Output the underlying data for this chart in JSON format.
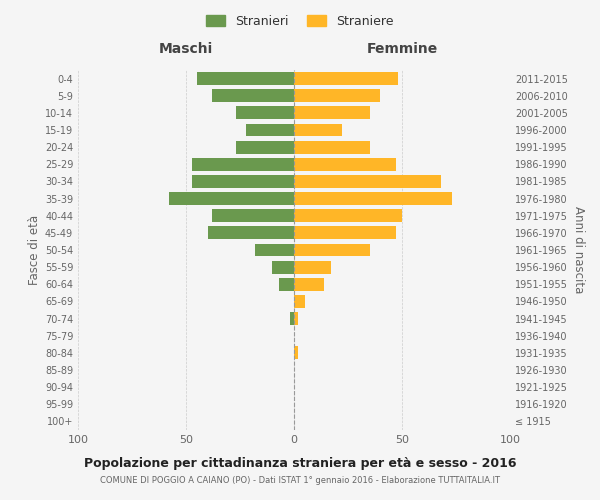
{
  "age_groups": [
    "100+",
    "95-99",
    "90-94",
    "85-89",
    "80-84",
    "75-79",
    "70-74",
    "65-69",
    "60-64",
    "55-59",
    "50-54",
    "45-49",
    "40-44",
    "35-39",
    "30-34",
    "25-29",
    "20-24",
    "15-19",
    "10-14",
    "5-9",
    "0-4"
  ],
  "birth_years": [
    "≤ 1915",
    "1916-1920",
    "1921-1925",
    "1926-1930",
    "1931-1935",
    "1936-1940",
    "1941-1945",
    "1946-1950",
    "1951-1955",
    "1956-1960",
    "1961-1965",
    "1966-1970",
    "1971-1975",
    "1976-1980",
    "1981-1985",
    "1986-1990",
    "1991-1995",
    "1996-2000",
    "2001-2005",
    "2006-2010",
    "2011-2015"
  ],
  "maschi": [
    0,
    0,
    0,
    0,
    0,
    0,
    2,
    0,
    7,
    10,
    18,
    40,
    38,
    58,
    47,
    47,
    27,
    22,
    27,
    38,
    45
  ],
  "femmine": [
    0,
    0,
    0,
    0,
    2,
    0,
    2,
    5,
    14,
    17,
    35,
    47,
    50,
    73,
    68,
    47,
    35,
    22,
    35,
    40,
    48
  ],
  "maschi_color": "#6a994e",
  "femmine_color": "#ffb627",
  "background_color": "#f5f5f5",
  "grid_color": "#cccccc",
  "title_main": "Popolazione per cittadinanza straniera per età e sesso - 2016",
  "title_sub": "COMUNE DI POGGIO A CAIANO (PO) - Dati ISTAT 1° gennaio 2016 - Elaborazione TUTTAITALIA.IT",
  "xlabel_left": "Maschi",
  "xlabel_right": "Femmine",
  "ylabel_left": "Fasce di età",
  "ylabel_right": "Anni di nascita",
  "legend_maschi": "Stranieri",
  "legend_femmine": "Straniere",
  "xlim": [
    -100,
    100
  ],
  "xticks": [
    -100,
    -50,
    0,
    50,
    100
  ],
  "xticklabels": [
    "100",
    "50",
    "0",
    "50",
    "100"
  ]
}
